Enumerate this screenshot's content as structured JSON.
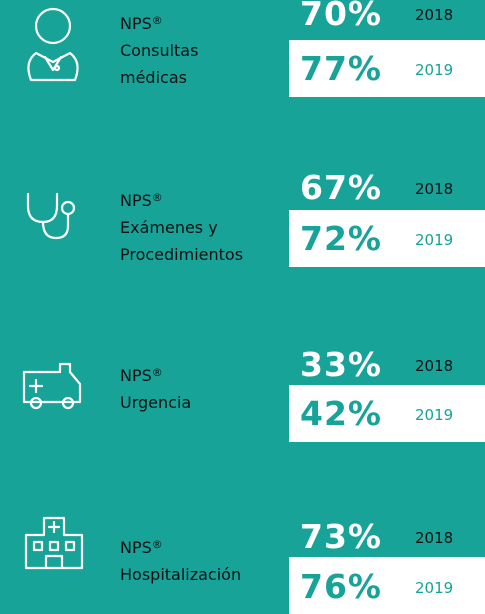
{
  "items": [
    {
      "prefix": "NPS",
      "mark": "®",
      "lines": [
        "Consultas",
        "médicas"
      ],
      "rows": [
        {
          "value": "70%",
          "year": "2018"
        },
        {
          "value": "77%",
          "year": "2019"
        }
      ]
    },
    {
      "prefix": "NPS",
      "mark": "®",
      "lines": [
        "Exámenes y",
        "Procedimientos"
      ],
      "rows": [
        {
          "value": "67%",
          "year": "2018"
        },
        {
          "value": "72%",
          "year": "2019"
        }
      ]
    },
    {
      "prefix": "NPS",
      "mark": "®",
      "lines": [
        "Urgencia"
      ],
      "rows": [
        {
          "value": "33%",
          "year": "2018"
        },
        {
          "value": "42%",
          "year": "2019"
        }
      ]
    },
    {
      "prefix": "NPS",
      "mark": "®",
      "lines": [
        "Hospitalización"
      ],
      "rows": [
        {
          "value": "73%",
          "year": "2018"
        },
        {
          "value": "76%",
          "year": "2019"
        }
      ]
    }
  ]
}
